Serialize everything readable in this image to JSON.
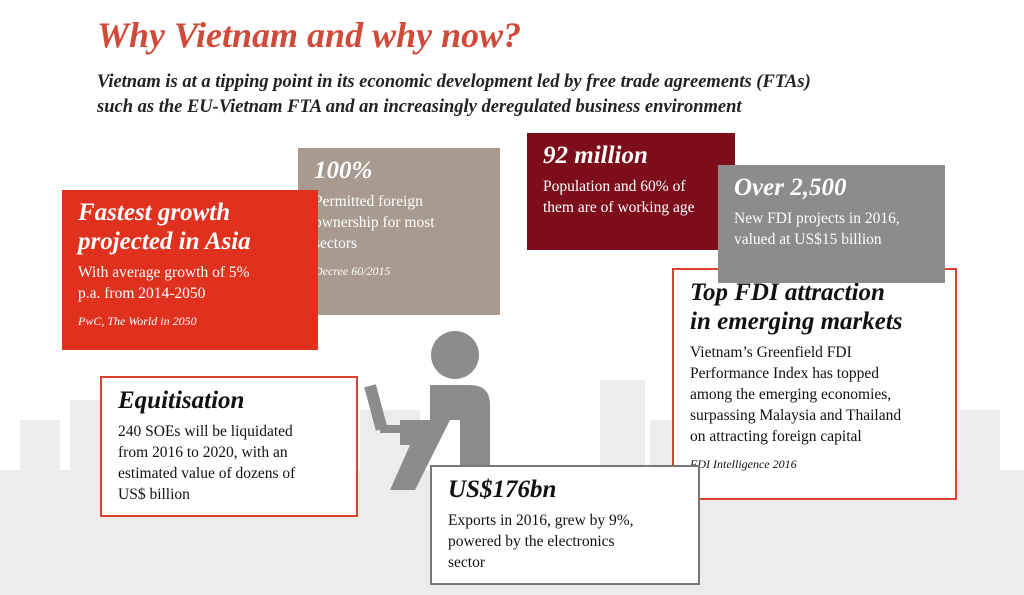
{
  "title": "Why Vietnam and why now?",
  "subtitle_lines": [
    "Vietnam is at a tipping point in its economic development led by free trade agreements (FTAs)",
    "such as the EU-Vietnam FTA and an increasingly deregulated business environment"
  ],
  "cards": [
    {
      "heading_lines": [
        "Fastest growth",
        "projected in Asia"
      ],
      "body_lines": [
        "With average growth of 5%",
        "p.a. from 2014-2050"
      ],
      "source": "PwC, The World in 2050"
    },
    {
      "heading_lines": [
        "100%"
      ],
      "body_lines": [
        "Permitted foreign",
        "ownership for most",
        "sectors"
      ],
      "source": "Decree 60/2015"
    },
    {
      "heading_lines": [
        "92 million"
      ],
      "body_lines": [
        "Population and 60% of",
        "them are of working age"
      ]
    },
    {
      "heading_lines": [
        "Over 2,500"
      ],
      "body_lines": [
        "New FDI projects in 2016,",
        "valued at US$15 billion"
      ]
    },
    {
      "heading_lines": [
        "Top FDI attraction",
        "in emerging markets"
      ],
      "body_lines": [
        "Vietnam’s Greenfield FDI",
        "Performance Index has topped",
        "among the emerging economies,",
        "surpassing Malaysia and Thailand",
        "on attracting foreign capital"
      ],
      "source": "FDI Intelligence 2016"
    },
    {
      "heading_lines": [
        "Equitisation"
      ],
      "body_lines": [
        "240 SOEs will be liquidated",
        "from 2016 to 2020, with an",
        "estimated value of dozens of",
        "US$ billion"
      ]
    },
    {
      "heading_lines": [
        "US$176bn"
      ],
      "body_lines": [
        "Exports in 2016, grew by 9%,",
        "powered by the electronics",
        "sector"
      ]
    }
  ]
}
